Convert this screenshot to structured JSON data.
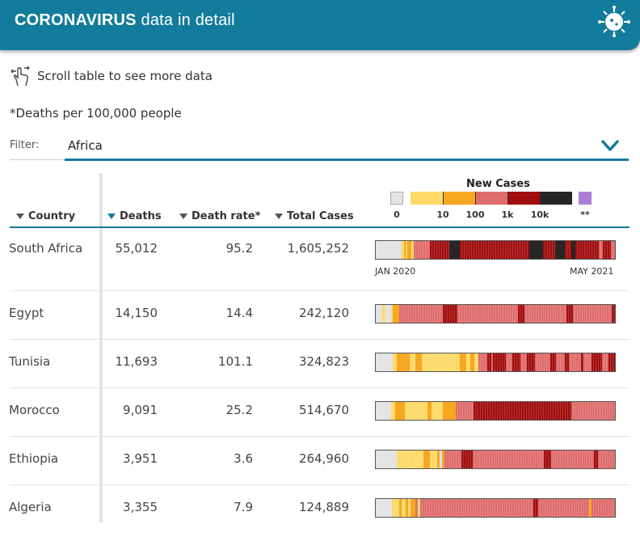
{
  "header": {
    "title_bold": "CORONAVIRUS",
    "title_rest": "data in detail",
    "icon": "virus-icon",
    "background": "#137b9c"
  },
  "scroll_hint": {
    "text": "Scroll table to see more data",
    "icon": "hand-swipe-icon"
  },
  "note": "*Deaths per 100,000 people",
  "filter": {
    "label": "Filter:",
    "value": "Africa",
    "icon": "chevron-down-icon"
  },
  "columns": {
    "country": "Country",
    "deaths": "Deaths",
    "rate": "Death rate*",
    "total": "Total Cases"
  },
  "legend": {
    "title": "New Cases",
    "labels": [
      "0",
      "10",
      "100",
      "1k",
      "10k",
      "**"
    ],
    "colors": {
      "zero": "#e4e4e4",
      "low": "#fed967",
      "mid": "#f6a821",
      "high": "#df6c6c",
      "vhigh": "#a10d0d",
      "top": "#262626",
      "na": "#a87fd4"
    }
  },
  "date_range": {
    "start": "JAN 2020",
    "end": "MAY 2021"
  },
  "rows": [
    {
      "country": "South Africa",
      "deaths": "55,012",
      "rate": "95.2",
      "total": "1,605,252"
    },
    {
      "country": "Egypt",
      "deaths": "14,150",
      "rate": "14.4",
      "total": "242,120"
    },
    {
      "country": "Tunisia",
      "deaths": "11,693",
      "rate": "101.1",
      "total": "324,823"
    },
    {
      "country": "Morocco",
      "deaths": "9,091",
      "rate": "25.2",
      "total": "514,670"
    },
    {
      "country": "Ethiopia",
      "deaths": "3,951",
      "rate": "3.6",
      "total": "264,960"
    },
    {
      "country": "Algeria",
      "deaths": "3,355",
      "rate": "7.9",
      "total": "124,889"
    }
  ]
}
